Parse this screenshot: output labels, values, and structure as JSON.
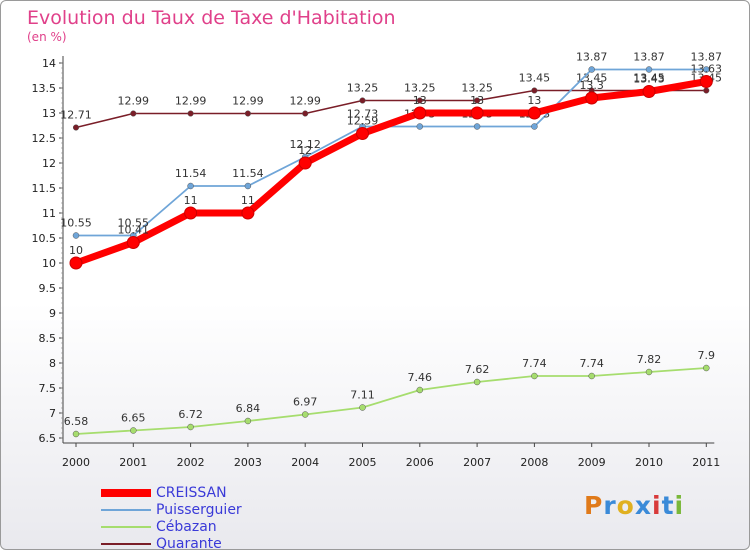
{
  "header": {
    "title": "Evolution du Taux de Taxe d'Habitation",
    "subtitle": "(en %)"
  },
  "logo": {
    "text": "Proxiti"
  },
  "chart_data": {
    "type": "line",
    "title": "Evolution du Taux de Taxe d'Habitation",
    "subtitle": "(en %)",
    "xlabel": "",
    "ylabel": "",
    "ylim": [
      6.5,
      14
    ],
    "yticks": [
      "6.5",
      "7",
      "7.5",
      "8",
      "8.5",
      "9",
      "9.5",
      "10",
      "10.5",
      "11",
      "11.5",
      "12",
      "12.5",
      "13",
      "13.5",
      "14"
    ],
    "categories": [
      "2000",
      "2001",
      "2002",
      "2003",
      "2004",
      "2005",
      "2006",
      "2007",
      "2008",
      "2009",
      "2010",
      "2011"
    ],
    "grid": false,
    "legend_position": "bottom-left",
    "series": [
      {
        "name": "Quarante",
        "color": "#7a1e28",
        "width": 1.5,
        "marker": 2.8,
        "values": [
          12.71,
          12.99,
          12.99,
          12.99,
          12.99,
          13.25,
          13.25,
          13.25,
          13.45,
          13.45,
          13.45,
          13.45
        ],
        "labels": [
          "12.71",
          "12.99",
          "12.99",
          "12.99",
          "12.99",
          "13.25",
          "13.25",
          "13.25",
          "13.45",
          "13.45",
          "13.45",
          "13.45"
        ]
      },
      {
        "name": "Puisserguier",
        "color": "#6fa5d8",
        "width": 1.8,
        "marker": 3,
        "values": [
          10.55,
          10.55,
          11.54,
          11.54,
          12.12,
          12.73,
          12.73,
          12.73,
          12.73,
          13.87,
          13.87,
          13.87
        ],
        "labels": [
          "10.55",
          "10.55",
          "11.54",
          "11.54",
          "12.12",
          "12.73",
          "12.73",
          "12.73",
          "12.73",
          "13.87",
          "13.87",
          "13.87"
        ]
      },
      {
        "name": "Cébazan",
        "color": "#a6dd6e",
        "width": 1.8,
        "marker": 3,
        "values": [
          6.58,
          6.65,
          6.72,
          6.84,
          6.97,
          7.11,
          7.46,
          7.62,
          7.74,
          7.74,
          7.82,
          7.9
        ],
        "labels": [
          "6.58",
          "6.65",
          "6.72",
          "6.84",
          "6.97",
          "7.11",
          "7.46",
          "7.62",
          "7.74",
          "7.74",
          "7.82",
          "7.9"
        ]
      },
      {
        "name": "CREISSAN",
        "color": "#ff0000",
        "width": 7,
        "marker": 6,
        "values": [
          10,
          10.41,
          11,
          11,
          12,
          12.59,
          13,
          13,
          13,
          13.3,
          13.43,
          13.63
        ],
        "labels": [
          "10",
          "10.41",
          "11",
          "11",
          "12",
          "12.59",
          "13",
          "13",
          "13",
          "13.3",
          "13.43",
          "13.63"
        ]
      }
    ]
  }
}
